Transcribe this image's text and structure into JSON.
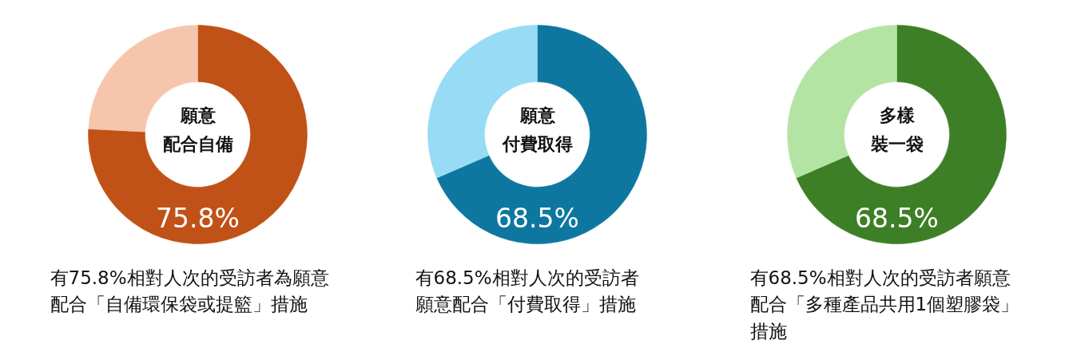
{
  "chart_data": [
    {
      "type": "donut",
      "title": "願意配合自備",
      "categories": [
        null,
        null
      ],
      "values": [
        75.8,
        24.2
      ],
      "colors": [
        "#c05117",
        "#f5c6ac"
      ],
      "value_labels": [
        "75.8%",
        null
      ],
      "annotations": [
        "有75.8%相對人次的受訪者為願意配合「自備環保袋或提籃」措施"
      ]
    },
    {
      "type": "donut",
      "title": "願意付費取得",
      "categories": [
        null,
        null
      ],
      "values": [
        68.5,
        31.5
      ],
      "colors": [
        "#0e77a0",
        "#98dbf5"
      ],
      "value_labels": [
        "68.5%",
        null
      ],
      "annotations": [
        "有68.5%相對人次的受訪者願意配合「付費取得」措施"
      ]
    },
    {
      "type": "donut",
      "title": "多樣裝一袋",
      "categories": [
        null,
        null
      ],
      "values": [
        68.5,
        31.5
      ],
      "colors": [
        "#3d7f26",
        "#b4e4a4"
      ],
      "value_labels": [
        "68.5%",
        null
      ],
      "annotations": [
        "有68.5%相對人次的受訪者願意配合「多種產品共用1個塑膠袋」措施"
      ]
    }
  ]
}
